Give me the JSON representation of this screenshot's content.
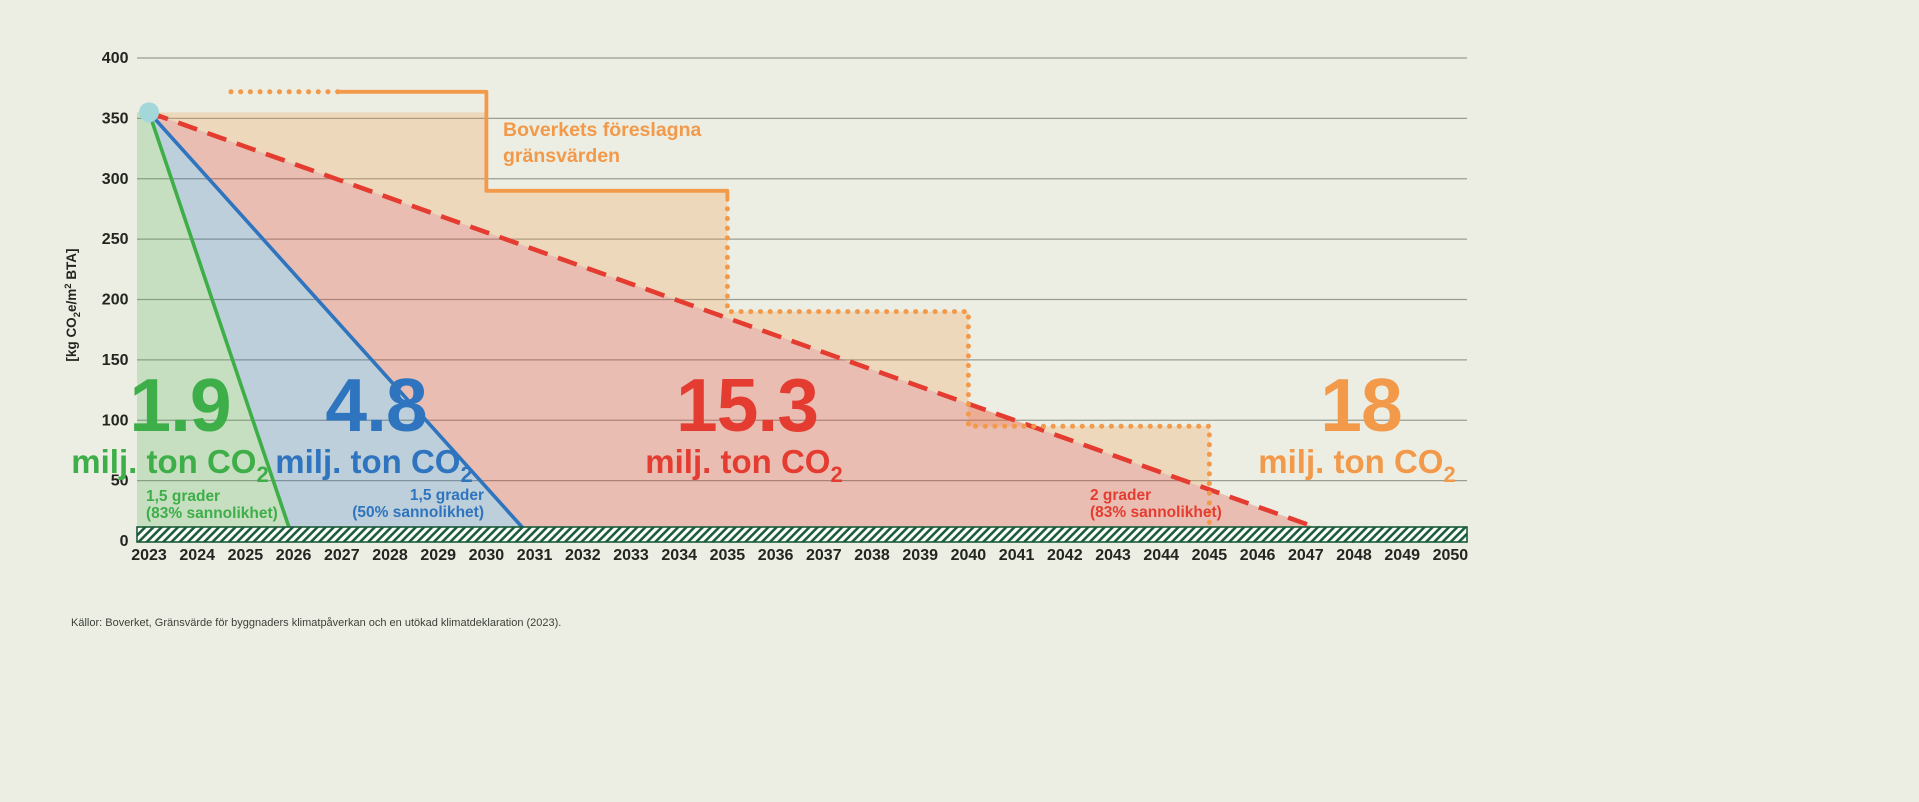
{
  "background_color": "#ECEEE3",
  "source_note": "Källor: Boverket, Gränsvärde för byggnaders klimatpåverkan och en utökad klimatdeklaration (2023).",
  "chart_data": {
    "type": "area",
    "title": "",
    "x": {
      "range": [
        2023,
        2050
      ],
      "label_years": [
        2023,
        2024,
        2025,
        2026,
        2027,
        2028,
        2029,
        2030,
        2031,
        2032,
        2033,
        2034,
        2035,
        2036,
        2037,
        2038,
        2039,
        2040,
        2041,
        2042,
        2043,
        2044,
        2045,
        2046,
        2047,
        2048,
        2049,
        2050
      ]
    },
    "y": {
      "range": [
        0,
        400
      ],
      "ticks": [
        400,
        350,
        300,
        250,
        200,
        150,
        100,
        50,
        0
      ],
      "unit_parts": [
        "[kg CO",
        "2",
        "e/m",
        "2",
        " BTA]"
      ]
    },
    "grid_color": "#9A9D93",
    "axis_text_color": "#232620",
    "start_point": {
      "year": 2023,
      "value": 355,
      "color": "#A3D7D9"
    },
    "series": [
      {
        "id": "budget-1-5-83",
        "big_value": "1.9",
        "unit": "milj. ton CO",
        "unit_sub": "2",
        "scenario_line1": "1,5 grader",
        "scenario_line2": "(83% sannolikhet)",
        "color": "#3EAE49",
        "fill": "rgba(62,174,73,0.22)",
        "dashed": false,
        "points": [
          [
            2023,
            355
          ],
          [
            2026,
            0
          ]
        ]
      },
      {
        "id": "budget-1-5-50",
        "big_value": "4.8",
        "unit": "milj. ton CO",
        "unit_sub": "2",
        "scenario_line1": "1,5 grader",
        "scenario_line2": "(50% sannolikhet)",
        "color": "#2F74BE",
        "fill": "rgba(47,116,190,0.25)",
        "dashed": false,
        "points": [
          [
            2023,
            355
          ],
          [
            2031,
            0
          ]
        ]
      },
      {
        "id": "budget-2-83",
        "big_value": "15.3",
        "unit": "milj. ton CO",
        "unit_sub": "2",
        "scenario_line1": "2 grader",
        "scenario_line2": "(83% sannolikhet)",
        "color": "#E43C30",
        "fill": "rgba(228,60,48,0.27)",
        "dashed": true,
        "points": [
          [
            2023,
            355
          ],
          [
            2048,
            0
          ]
        ]
      }
    ],
    "limit_line": {
      "label_line1": "Boverkets föreslagna",
      "label_line2": "gränsvärden",
      "big_value": "18",
      "unit": "milj. ton CO",
      "unit_sub": "2",
      "color": "#F2994A",
      "fill": "rgba(242,155,75,0.26)",
      "steps": [
        [
          2023,
          355
        ],
        [
          2030,
          355
        ],
        [
          2030,
          290
        ],
        [
          2035,
          290
        ],
        [
          2035,
          190
        ],
        [
          2040,
          190
        ],
        [
          2040,
          95
        ],
        [
          2045,
          95
        ],
        [
          2045,
          0
        ]
      ],
      "annotation_level": 372,
      "annotation_dotted_start": 2024.7,
      "annotation_solid_start": 2026.92
    },
    "baseline_bar": {
      "fill": "#FFFFFF",
      "hatch_color": "#1A5B38"
    }
  }
}
